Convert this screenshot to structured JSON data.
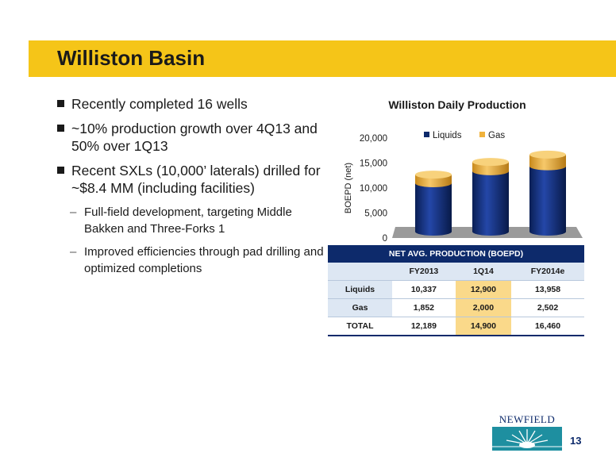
{
  "slide": {
    "title": "Williston Basin",
    "page_number": "13"
  },
  "bullets": [
    "Recently completed 16 wells",
    "~10% production growth over 4Q13 and 50% over 1Q13",
    "Recent SXLs (10,000’ laterals) drilled for ~$8.4 MM (including facilities)"
  ],
  "sub_bullets": [
    "Full-field development, targeting Middle Bakken and Three-Forks 1",
    "Improved efficiencies through pad drilling and optimized completions"
  ],
  "chart_data": {
    "type": "bar",
    "stacked": true,
    "title": "Williston Daily Production",
    "ylabel": "BOEPD (net)",
    "xlabel": "",
    "ylim": [
      0,
      20000
    ],
    "yticks": [
      "0",
      "5,000",
      "10,000",
      "15,000",
      "20,000"
    ],
    "categories": [
      "FY2013",
      "1Q14",
      "FY2014e"
    ],
    "series": [
      {
        "name": "Liquids",
        "values": [
          10337,
          12900,
          13958
        ],
        "color": "#0d2a6b"
      },
      {
        "name": "Gas",
        "values": [
          1852,
          2000,
          2502
        ],
        "color": "#f0b23c"
      }
    ],
    "legend": "top",
    "grid": false
  },
  "table": {
    "title": "NET AVG. PRODUCTION  (BOEPD)",
    "columns": [
      "FY2013",
      "1Q14",
      "FY2014e"
    ],
    "rows": [
      {
        "label": "Liquids",
        "values": [
          "10,337",
          "12,900",
          "13,958"
        ]
      },
      {
        "label": "Gas",
        "values": [
          "1,852",
          "2,000",
          "2,502"
        ]
      },
      {
        "label": "TOTAL",
        "values": [
          "12,189",
          "14,900",
          "16,460"
        ]
      }
    ]
  },
  "logo": {
    "text": "NEWFIELD"
  },
  "colors": {
    "accent": "#f5c518",
    "navy": "#0d2a6b",
    "gold": "#f0b23c",
    "teal": "#1e8fa0"
  }
}
